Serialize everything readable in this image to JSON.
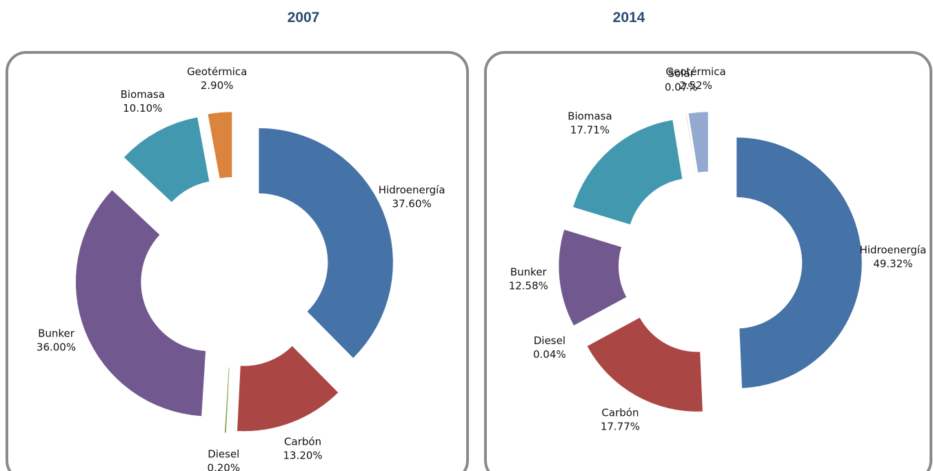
{
  "chart_data": [
    {
      "type": "donut",
      "title": "2007",
      "categories": [
        "Hidroenergía",
        "Carbón",
        "Diesel",
        "Bunker",
        "Biomasa",
        "Geotérmica"
      ],
      "values": [
        37.6,
        13.2,
        0.2,
        36.0,
        10.1,
        2.9
      ],
      "value_labels": [
        "37.60%",
        "13.20%",
        "0.20%",
        "36.00%",
        "10.10%",
        "2.90%"
      ],
      "colors": [
        "#4572a7",
        "#aa4643",
        "#89a54e",
        "#71588f",
        "#4198af",
        "#db843d"
      ]
    },
    {
      "type": "donut",
      "title": "2014",
      "categories": [
        "Hidroenergía",
        "Carbón",
        "Diesel",
        "Bunker",
        "Biomasa",
        "Solar",
        "Geotérmica"
      ],
      "values": [
        49.32,
        17.77,
        0.04,
        12.58,
        17.71,
        0.07,
        2.52
      ],
      "value_labels": [
        "49.32%",
        "17.77%",
        "0.04%",
        "12.58%",
        "17.71%",
        "0.07%",
        "2.52%"
      ],
      "colors": [
        "#4572a7",
        "#aa4643",
        "#89a54e",
        "#71588f",
        "#4198af",
        "#db843d",
        "#93a9cf"
      ]
    }
  ]
}
